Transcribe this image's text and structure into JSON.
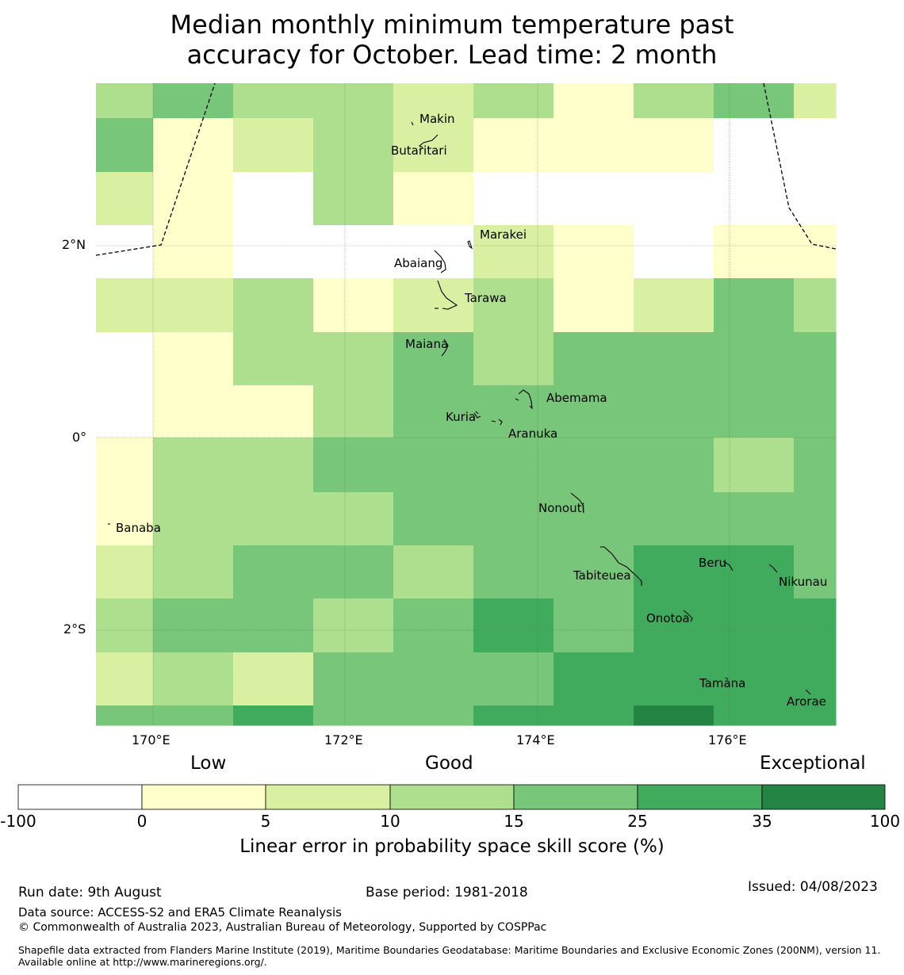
{
  "title_line1": "Median monthly minimum temperature past",
  "title_line2": "accuracy for October. Lead time: 2 month",
  "map": {
    "grid_colors": [
      [
        "#addf8e",
        "#78c679",
        "#addf8e",
        "#addf8e",
        "#d9f0a3",
        "#addf8e",
        "#ffffcc",
        "#addf8e",
        "#78c679",
        "#d9f0a3"
      ],
      [
        "#78c679",
        "#ffffcc",
        "#d9f0a3",
        "#addf8e",
        "#d9f0a3",
        "#ffffcc",
        "#ffffcc",
        "#ffffcc",
        "#ffffff",
        "#ffffff"
      ],
      [
        "#d9f0a3",
        "#ffffcc",
        "#ffffff",
        "#addf8e",
        "#ffffcc",
        "#ffffff",
        "#ffffff",
        "#ffffff",
        "#ffffff",
        "#ffffff"
      ],
      [
        "#ffffff",
        "#ffffcc",
        "#ffffff",
        "#ffffff",
        "#ffffff",
        "#d9f0a3",
        "#ffffcc",
        "#ffffff",
        "#ffffcc",
        "#ffffcc"
      ],
      [
        "#d9f0a3",
        "#d9f0a3",
        "#addf8e",
        "#ffffcc",
        "#d9f0a3",
        "#addf8e",
        "#ffffcc",
        "#d9f0a3",
        "#78c679",
        "#addf8e"
      ],
      [
        "#ffffff",
        "#ffffcc",
        "#addf8e",
        "#addf8e",
        "#78c679",
        "#addf8e",
        "#78c679",
        "#78c679",
        "#78c679",
        "#78c679"
      ],
      [
        "#ffffff",
        "#ffffcc",
        "#ffffcc",
        "#addf8e",
        "#78c679",
        "#78c679",
        "#78c679",
        "#78c679",
        "#78c679",
        "#78c679"
      ],
      [
        "#ffffcc",
        "#addf8e",
        "#addf8e",
        "#78c679",
        "#78c679",
        "#78c679",
        "#78c679",
        "#78c679",
        "#addf8e",
        "#78c679"
      ],
      [
        "#ffffcc",
        "#addf8e",
        "#addf8e",
        "#addf8e",
        "#78c679",
        "#78c679",
        "#78c679",
        "#78c679",
        "#78c679",
        "#78c679"
      ],
      [
        "#d9f0a3",
        "#addf8e",
        "#78c679",
        "#78c679",
        "#addf8e",
        "#78c679",
        "#78c679",
        "#41ab5d",
        "#41ab5d",
        "#78c679"
      ],
      [
        "#addf8e",
        "#78c679",
        "#78c679",
        "#addf8e",
        "#78c679",
        "#41ab5d",
        "#78c679",
        "#41ab5d",
        "#41ab5d",
        "#41ab5d"
      ],
      [
        "#d9f0a3",
        "#addf8e",
        "#d9f0a3",
        "#78c679",
        "#78c679",
        "#78c679",
        "#41ab5d",
        "#41ab5d",
        "#41ab5d",
        "#41ab5d"
      ],
      [
        "#78c679",
        "#78c679",
        "#41ab5d",
        "#78c679",
        "#78c679",
        "#41ab5d",
        "#41ab5d",
        "#238443",
        "#41ab5d",
        "#41ab5d"
      ]
    ],
    "lat_labels": [
      "2°N",
      "0°",
      "2°S"
    ],
    "lon_labels": [
      "170°E",
      "172°E",
      "174°E",
      "176°E"
    ],
    "islands": [
      {
        "name": "Makin"
      },
      {
        "name": "Butaritari"
      },
      {
        "name": "Marakei"
      },
      {
        "name": "Abaiang"
      },
      {
        "name": "Tarawa"
      },
      {
        "name": "Maiana"
      },
      {
        "name": "Abemama"
      },
      {
        "name": "Kuria"
      },
      {
        "name": "Aranuka"
      },
      {
        "name": "Nonouti"
      },
      {
        "name": "Banaba"
      },
      {
        "name": "Beru"
      },
      {
        "name": "Tabiteuea"
      },
      {
        "name": "Nikunau"
      },
      {
        "name": "Onotoa"
      },
      {
        "name": "Tamana"
      },
      {
        "name": "Arorae"
      }
    ]
  },
  "colorbar": {
    "words": [
      "Low",
      "Good",
      "Exceptional"
    ],
    "ticks": [
      "-100",
      "0",
      "5",
      "10",
      "15",
      "25",
      "35",
      "100"
    ],
    "colors": [
      "#ffffff",
      "#ffffcc",
      "#d9f0a3",
      "#addf8e",
      "#78c679",
      "#41ab5d",
      "#238443"
    ],
    "label": "Linear error in probability space skill score (%)"
  },
  "footer": {
    "run_date": "Run date: 9th August",
    "base_period": "Base period: 1981-2018",
    "issued": "Issued: 04/08/2023",
    "data_source": "Data source: ACCESS-S2 and ERA5 Climate Reanalysis",
    "copyright": "© Commonwealth of Australia 2023, Australian Bureau of Meteorology, Supported by COSPPac",
    "shapefile": "Shapefile data extracted from Flanders Marine Institute (2019), Maritime Boundaries Geodatabase: Maritime Boundaries and Exclusive Economic Zones (200NM), version 11. Available online at http://www.marineregions.org/."
  }
}
